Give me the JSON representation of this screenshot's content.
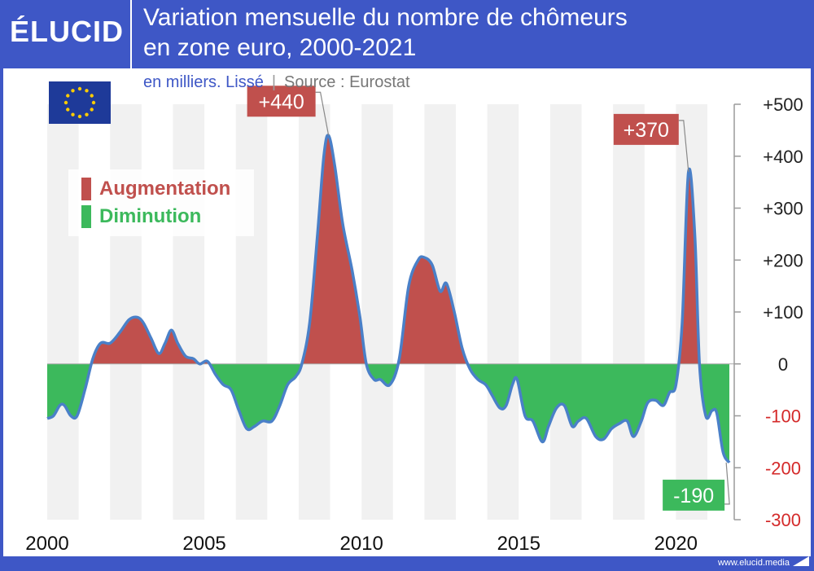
{
  "header": {
    "logo": "ÉLUCID",
    "title_line1": "Variation mensuelle du nombre de chômeurs",
    "title_line2": "en zone euro, 2000-2021",
    "subtitle_unit": "en milliers. Lissé",
    "subtitle_sep": "|",
    "subtitle_source": "Source : Eurostat"
  },
  "footer": {
    "url": "www.elucid.media"
  },
  "colors": {
    "frame": "#3e57c6",
    "increase": "#c0504d",
    "decrease": "#3cb95c",
    "line": "#4a80c8",
    "negative_tick": "#d42a2a",
    "band": "#f1f1f1"
  },
  "icons": {
    "flag": "eu-flag-icon"
  },
  "legend": {
    "increase_label": "Augmentation",
    "decrease_label": "Diminution"
  },
  "chart_data": {
    "type": "area",
    "title": "Variation mensuelle du nombre de chômeurs en zone euro, 2000-2021",
    "subtitle": "en milliers. Lissé",
    "xlabel": "",
    "ylabel": "",
    "xlim": [
      2000,
      2021.7
    ],
    "ylim": [
      -300,
      500
    ],
    "x_ticks": [
      2000,
      2005,
      2010,
      2015,
      2020
    ],
    "y_ticks": [
      500,
      400,
      300,
      200,
      100,
      0,
      -100,
      -200,
      -300
    ],
    "y_tick_labels": [
      "+500",
      "+400",
      "+300",
      "+200",
      "+100",
      "0",
      "-100",
      "-200",
      "-300"
    ],
    "grid": "alternating vertical bands per year",
    "annotations": [
      {
        "x": 2008.95,
        "y": 440,
        "label": "+440",
        "kind": "increase"
      },
      {
        "x": 2020.4,
        "y": 370,
        "label": "+370",
        "kind": "increase"
      },
      {
        "x": 2021.6,
        "y": -190,
        "label": "-190",
        "kind": "decrease"
      }
    ],
    "series": [
      {
        "points": [
          [
            2000.0,
            -105
          ],
          [
            2000.2,
            -100
          ],
          [
            2000.4,
            -80
          ],
          [
            2000.55,
            -80
          ],
          [
            2000.75,
            -100
          ],
          [
            2000.95,
            -100
          ],
          [
            2001.2,
            -50
          ],
          [
            2001.45,
            10
          ],
          [
            2001.7,
            40
          ],
          [
            2002.0,
            40
          ],
          [
            2002.3,
            60
          ],
          [
            2002.6,
            85
          ],
          [
            2002.85,
            90
          ],
          [
            2003.05,
            80
          ],
          [
            2003.3,
            50
          ],
          [
            2003.55,
            20
          ],
          [
            2003.75,
            40
          ],
          [
            2003.95,
            65
          ],
          [
            2004.15,
            40
          ],
          [
            2004.4,
            15
          ],
          [
            2004.65,
            10
          ],
          [
            2004.85,
            0
          ],
          [
            2005.1,
            5
          ],
          [
            2005.35,
            -20
          ],
          [
            2005.6,
            -40
          ],
          [
            2005.85,
            -50
          ],
          [
            2006.1,
            -90
          ],
          [
            2006.35,
            -125
          ],
          [
            2006.6,
            -120
          ],
          [
            2006.85,
            -110
          ],
          [
            2007.15,
            -110
          ],
          [
            2007.4,
            -80
          ],
          [
            2007.65,
            -40
          ],
          [
            2007.9,
            -25
          ],
          [
            2008.1,
            0
          ],
          [
            2008.35,
            80
          ],
          [
            2008.6,
            250
          ],
          [
            2008.8,
            400
          ],
          [
            2008.95,
            440
          ],
          [
            2009.15,
            380
          ],
          [
            2009.4,
            270
          ],
          [
            2009.7,
            180
          ],
          [
            2009.95,
            90
          ],
          [
            2010.15,
            0
          ],
          [
            2010.4,
            -30
          ],
          [
            2010.6,
            -30
          ],
          [
            2010.9,
            -40
          ],
          [
            2011.2,
            10
          ],
          [
            2011.5,
            150
          ],
          [
            2011.8,
            200
          ],
          [
            2012.0,
            205
          ],
          [
            2012.25,
            190
          ],
          [
            2012.5,
            140
          ],
          [
            2012.7,
            155
          ],
          [
            2012.95,
            100
          ],
          [
            2013.2,
            30
          ],
          [
            2013.45,
            -10
          ],
          [
            2013.7,
            -30
          ],
          [
            2013.95,
            -40
          ],
          [
            2014.15,
            -60
          ],
          [
            2014.4,
            -85
          ],
          [
            2014.6,
            -80
          ],
          [
            2014.8,
            -40
          ],
          [
            2014.95,
            -30
          ],
          [
            2015.2,
            -100
          ],
          [
            2015.45,
            -110
          ],
          [
            2015.75,
            -150
          ],
          [
            2015.95,
            -120
          ],
          [
            2016.2,
            -85
          ],
          [
            2016.45,
            -80
          ],
          [
            2016.7,
            -120
          ],
          [
            2016.9,
            -110
          ],
          [
            2017.15,
            -105
          ],
          [
            2017.45,
            -140
          ],
          [
            2017.7,
            -145
          ],
          [
            2017.95,
            -125
          ],
          [
            2018.2,
            -115
          ],
          [
            2018.45,
            -110
          ],
          [
            2018.65,
            -140
          ],
          [
            2018.9,
            -110
          ],
          [
            2019.1,
            -75
          ],
          [
            2019.35,
            -70
          ],
          [
            2019.6,
            -80
          ],
          [
            2019.8,
            -55
          ],
          [
            2020.0,
            -40
          ],
          [
            2020.2,
            80
          ],
          [
            2020.4,
            370
          ],
          [
            2020.6,
            250
          ],
          [
            2020.75,
            0
          ],
          [
            2020.95,
            -100
          ],
          [
            2021.15,
            -90
          ],
          [
            2021.3,
            -95
          ],
          [
            2021.5,
            -170
          ],
          [
            2021.7,
            -190
          ]
        ]
      }
    ]
  }
}
